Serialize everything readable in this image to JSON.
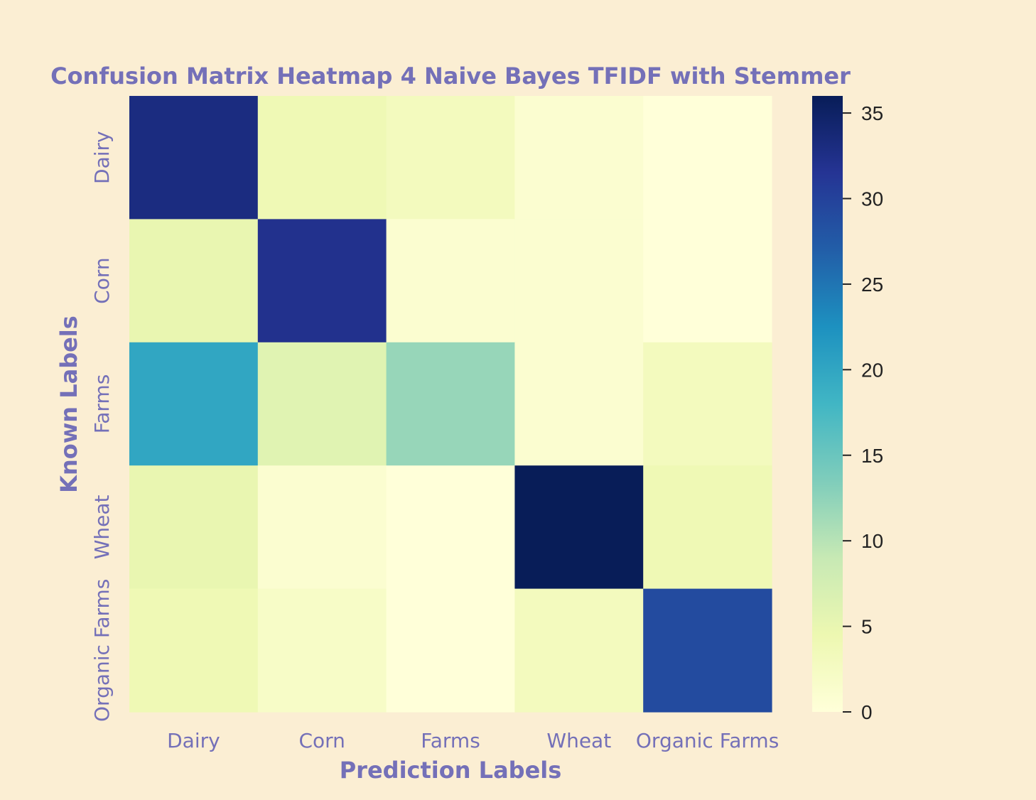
{
  "chart_data": {
    "type": "heatmap",
    "title": "Confusion Matrix Heatmap 4 Naive Bayes TFIDF with Stemmer",
    "xlabel": "Prediction Labels",
    "ylabel": "Known Labels",
    "x_categories": [
      "Dairy",
      "Corn",
      "Farms",
      "Wheat",
      "Organic Farms"
    ],
    "y_categories": [
      "Dairy",
      "Corn",
      "Farms",
      "Wheat",
      "Organic Farms"
    ],
    "values": [
      [
        33,
        4,
        3,
        1,
        0
      ],
      [
        5,
        32,
        1,
        1,
        0
      ],
      [
        20,
        6,
        12,
        1,
        3
      ],
      [
        5,
        1,
        0,
        36,
        4
      ],
      [
        4,
        2,
        0,
        3,
        29
      ]
    ],
    "colormap": "YlGnBu",
    "colorbar": {
      "min": 0,
      "max": 36,
      "ticks": [
        0,
        5,
        10,
        15,
        20,
        25,
        30,
        35
      ]
    },
    "grid": false,
    "legend": "colorbar-right"
  },
  "colors": {
    "background": "#fbeed3",
    "label_color": "#7470b8",
    "tick_text": "#222222"
  }
}
